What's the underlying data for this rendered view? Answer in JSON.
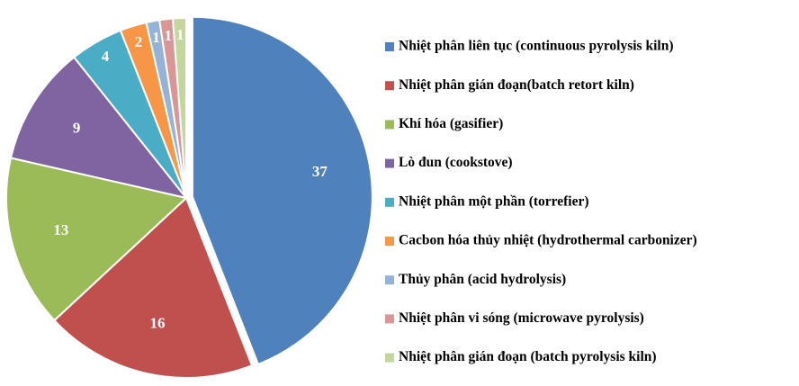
{
  "chart_data": {
    "type": "pie",
    "categories": [
      "Nhiệt phân liên tục (continuous pyrolysis kiln)",
      "Nhiệt phân gián đoạn(batch retort kiln)",
      "Khí hóa (gasifier)",
      "Lò đun (cookstove)",
      "Nhiệt phân một phần  (torrefier)",
      "Cacbon hóa thủy nhiệt (hydrothermal carbonizer)",
      "Thủy phân (acid hydrolysis)",
      "Nhiệt phân vi sóng (microwave pyrolysis)",
      "Nhiệt phân gián đoạn (batch pyrolysis kiln)"
    ],
    "values": [
      37,
      16,
      13,
      9,
      4,
      2,
      1,
      1,
      1
    ],
    "colors": [
      "#4f81bd",
      "#c0504d",
      "#9bbb59",
      "#8064a2",
      "#4bacc6",
      "#f79646",
      "#95b3d7",
      "#d99694",
      "#c3d69b"
    ],
    "legend": "right"
  }
}
